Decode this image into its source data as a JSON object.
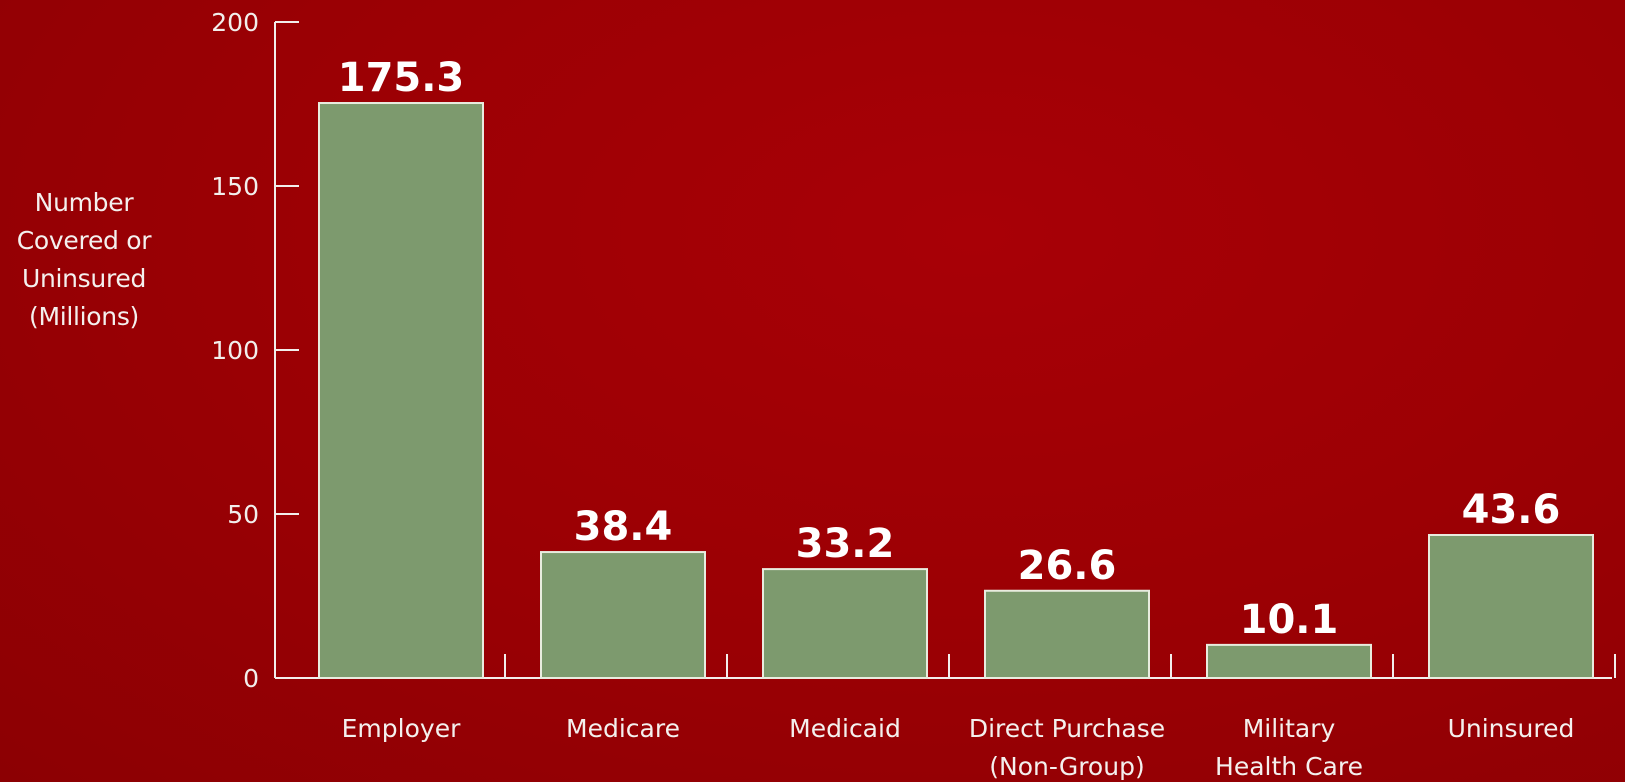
{
  "chart_data": {
    "type": "bar",
    "categories": [
      [
        "Employer"
      ],
      [
        "Medicare"
      ],
      [
        "Medicaid"
      ],
      [
        "Direct Purchase",
        "(Non-Group)"
      ],
      [
        "Military",
        "Health Care"
      ],
      [
        "Uninsured"
      ]
    ],
    "values": [
      175.3,
      38.4,
      33.2,
      26.6,
      10.1,
      43.6
    ],
    "value_labels": [
      "175.3",
      "38.4",
      "33.2",
      "26.6",
      "10.1",
      "43.6"
    ],
    "ylabel_lines": [
      "Number",
      "Covered or",
      "Uninsured",
      "(Millions)"
    ],
    "ylim": [
      0,
      200
    ],
    "yticks": [
      0,
      50,
      100,
      150,
      200
    ],
    "bar_color": "#7d9a6e",
    "bar_edge_color": "#e9ecdf",
    "axis_color": "#f2eeec",
    "background_color": "#9a0004",
    "grid": false
  }
}
